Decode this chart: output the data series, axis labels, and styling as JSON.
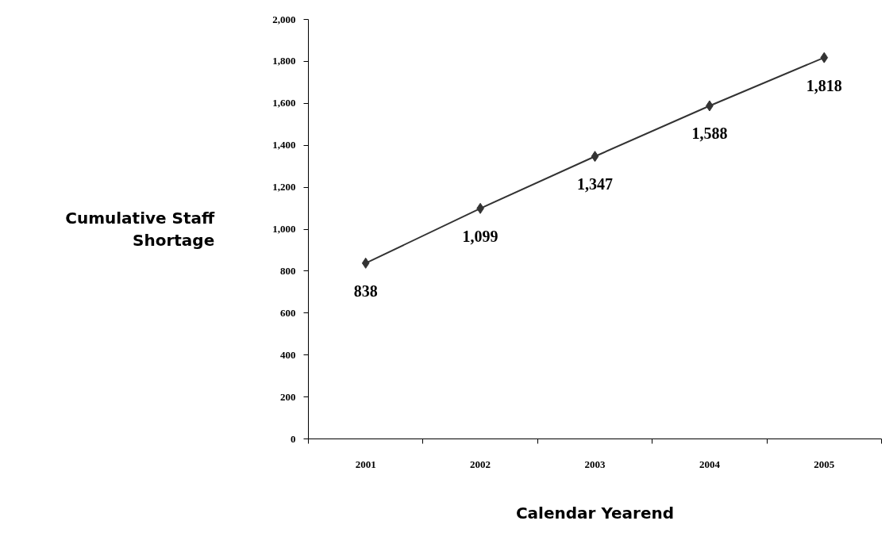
{
  "chart_data": {
    "type": "line",
    "xlabel": "Calendar Yearend",
    "ylabel": "Cumulative Staff Shortage",
    "categories": [
      "2001",
      "2002",
      "2003",
      "2004",
      "2005"
    ],
    "series": [
      {
        "color": "#333333",
        "values": [
          838,
          1099,
          1347,
          1588,
          1818
        ],
        "value_labels": [
          "838",
          "1,099",
          "1,347",
          "1,588",
          "1,818"
        ]
      }
    ],
    "ylim": [
      0,
      2000
    ],
    "yticks": [
      {
        "value": 0,
        "label": "0"
      },
      {
        "value": 200,
        "label": "200"
      },
      {
        "value": 400,
        "label": "400"
      },
      {
        "value": 600,
        "label": "600"
      },
      {
        "value": 800,
        "label": "800"
      },
      {
        "value": 1000,
        "label": "1,000"
      },
      {
        "value": 1200,
        "label": "1,200"
      },
      {
        "value": 1400,
        "label": "1,400"
      },
      {
        "value": 1600,
        "label": "1,600"
      },
      {
        "value": 1800,
        "label": "1,800"
      },
      {
        "value": 2000,
        "label": "2,000"
      }
    ],
    "marker": "diamond",
    "line_style": "solid",
    "grid": false,
    "data_labels": true
  }
}
